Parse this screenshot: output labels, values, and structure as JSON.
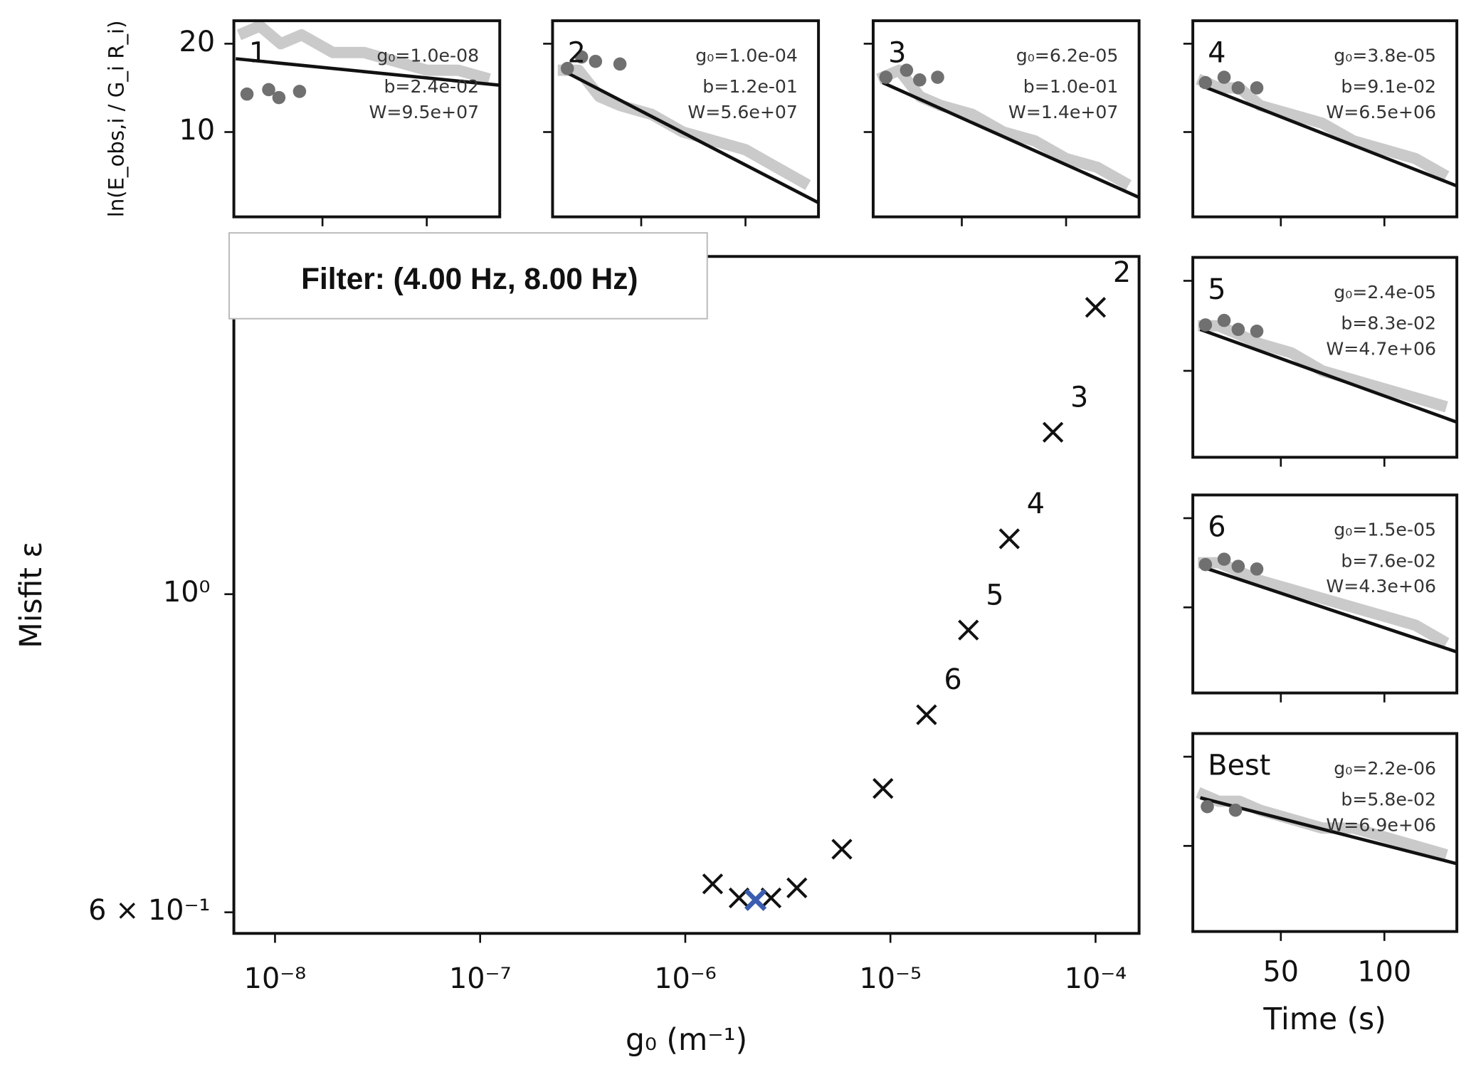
{
  "chart_data": [
    {
      "type": "scatter",
      "xlabel": "g₀ (m⁻¹)",
      "ylabel": "Misfit ε",
      "annotation": "Filter: (4.00 Hz, 8.00 Hz)",
      "xlog": true,
      "ylog": true,
      "xlim": [
        6.3e-09,
        0.000163
      ],
      "ylim": [
        0.58,
        1.72
      ],
      "xticks": [
        {
          "value": 1e-08,
          "label": "10⁻⁸"
        },
        {
          "value": 1e-07,
          "label": "10⁻⁷"
        },
        {
          "value": 1e-06,
          "label": "10⁻⁶"
        },
        {
          "value": 1e-05,
          "label": "10⁻⁵"
        },
        {
          "value": 0.0001,
          "label": "10⁻⁴"
        }
      ],
      "yticks": [
        {
          "value": 1,
          "label": "10⁰"
        },
        {
          "value": 0.6,
          "label": "6 × 10⁻¹"
        }
      ],
      "series": [
        {
          "color": "#111111",
          "x": [
            0.0001,
            6.2e-05,
            3.8e-05,
            2.4e-05,
            1.5e-05,
            9.2e-06,
            5.8e-06,
            3.5e-06,
            1.36e-06,
            1.83e-06,
            2.62e-06
          ],
          "values": [
            1.585,
            1.297,
            1.093,
            0.944,
            0.824,
            0.732,
            0.664,
            0.624,
            0.628,
            0.614,
            0.614
          ],
          "point_labels": [
            "2",
            "3",
            "4",
            "5",
            "6",
            null,
            null,
            null,
            null,
            null,
            null
          ]
        },
        {
          "color": "#3a5db0",
          "x": [
            2.2e-06
          ],
          "values": [
            0.612
          ]
        }
      ]
    },
    {
      "type": "line",
      "title": "1",
      "annotations": [
        "g₀=1.0e-08",
        "b=2.4e-02",
        "W=9.5e+07"
      ],
      "ylabel": "ln(E_obs,i / G_i R_i)",
      "xlim": [
        7.5,
        135
      ],
      "ylim": [
        0.4,
        22.6
      ],
      "xticks": [
        50,
        100
      ],
      "yticks": [
        10,
        20
      ],
      "ytick_labels": true,
      "xtick_labels": false,
      "x": [
        10,
        20,
        30,
        40,
        55,
        70,
        85,
        100,
        115,
        130
      ],
      "series": [
        {
          "color": "#c4c4c4",
          "values": [
            21,
            22,
            20,
            21,
            19,
            19,
            18,
            17,
            17,
            16
          ]
        }
      ],
      "points": {
        "color": "#707070",
        "x": [
          13.8,
          24.2,
          29.1,
          39
        ],
        "values": [
          14.3,
          14.8,
          13.9,
          14.6
        ]
      },
      "fit": {
        "color": "#111111",
        "x": [
          8.4,
          135
        ],
        "values": [
          18.3,
          15.3
        ]
      }
    },
    {
      "type": "line",
      "title": "2",
      "annotations": [
        "g₀=1.0e-04",
        "b=1.2e-01",
        "W=5.6e+07"
      ],
      "xlim": [
        7.5,
        135
      ],
      "ylim": [
        0.4,
        22.6
      ],
      "xticks": [
        50,
        100
      ],
      "yticks": [
        10,
        20
      ],
      "ytick_labels": false,
      "xtick_labels": false,
      "x": [
        10,
        20,
        30,
        40,
        55,
        70,
        85,
        100,
        115,
        130
      ],
      "series": [
        {
          "color": "#c4c4c4",
          "values": [
            17,
            17,
            14,
            13,
            12,
            10,
            9,
            8,
            6,
            4
          ]
        }
      ],
      "points": {
        "color": "#707070",
        "x": [
          14.6,
          21.4,
          28.1,
          39.8
        ],
        "values": [
          17.2,
          18.5,
          18,
          17.7
        ]
      },
      "fit": {
        "color": "#111111",
        "x": [
          12.9,
          135
        ],
        "values": [
          16.9,
          2.0
        ]
      }
    },
    {
      "type": "line",
      "title": "3",
      "annotations": [
        "g₀=6.2e-05",
        "b=1.0e-01",
        "W=1.4e+07"
      ],
      "xlim": [
        7.5,
        135
      ],
      "ylim": [
        0.4,
        22.6
      ],
      "xticks": [
        50,
        100
      ],
      "yticks": [
        10,
        20
      ],
      "ytick_labels": false,
      "xtick_labels": false,
      "x": [
        10,
        20,
        30,
        40,
        55,
        70,
        85,
        100,
        115,
        130
      ],
      "series": [
        {
          "color": "#c4c4c4",
          "values": [
            16,
            17,
            14,
            13,
            12,
            10,
            9,
            7,
            6,
            4
          ]
        }
      ],
      "points": {
        "color": "#707070",
        "x": [
          13.6,
          23.5,
          29.8,
          38.4
        ],
        "values": [
          16.2,
          17,
          15.9,
          16.2
        ]
      },
      "fit": {
        "color": "#111111",
        "x": [
          12,
          135
        ],
        "values": [
          15.6,
          2.6
        ]
      }
    },
    {
      "type": "line",
      "title": "4",
      "annotations": [
        "g₀=3.8e-05",
        "b=9.1e-02",
        "W=6.5e+06"
      ],
      "xlim": [
        7.5,
        135
      ],
      "ylim": [
        0.4,
        22.6
      ],
      "xticks": [
        50,
        100
      ],
      "yticks": [
        10,
        20
      ],
      "ytick_labels": false,
      "xtick_labels": false,
      "x": [
        10,
        20,
        30,
        40,
        55,
        70,
        85,
        100,
        115,
        130
      ],
      "series": [
        {
          "color": "#c4c4c4",
          "values": [
            16,
            15,
            15,
            13,
            12,
            11,
            9,
            8,
            7,
            5
          ]
        }
      ],
      "points": {
        "color": "#707070",
        "x": [
          13.6,
          22.6,
          29.4,
          38.4
        ],
        "values": [
          15.6,
          16.2,
          15,
          15
        ]
      },
      "fit": {
        "color": "#111111",
        "x": [
          11.1,
          135
        ],
        "values": [
          15.3,
          3.9
        ]
      }
    },
    {
      "type": "line",
      "title": "5",
      "annotations": [
        "g₀=2.4e-05",
        "b=8.3e-02",
        "W=4.7e+06"
      ],
      "xlim": [
        7.5,
        135
      ],
      "ylim": [
        0.4,
        22.6
      ],
      "xticks": [
        50,
        100
      ],
      "yticks": [
        10,
        20
      ],
      "ytick_labels": false,
      "xtick_labels": false,
      "x": [
        10,
        20,
        30,
        40,
        55,
        70,
        85,
        100,
        115,
        130
      ],
      "series": [
        {
          "color": "#c4c4c4",
          "values": [
            15,
            15,
            14,
            13,
            12,
            10,
            9,
            8,
            7,
            6
          ]
        }
      ],
      "points": {
        "color": "#707070",
        "x": [
          13.6,
          22.6,
          29.4,
          38.4
        ],
        "values": [
          15.1,
          15.6,
          14.6,
          14.4
        ]
      },
      "fit": {
        "color": "#111111",
        "x": [
          11.1,
          135
        ],
        "values": [
          14.6,
          4.3
        ]
      }
    },
    {
      "type": "line",
      "title": "6",
      "annotations": [
        "g₀=1.5e-05",
        "b=7.6e-02",
        "W=4.3e+06"
      ],
      "xlim": [
        7.5,
        135
      ],
      "ylim": [
        0.4,
        22.6
      ],
      "xticks": [
        50,
        100
      ],
      "yticks": [
        10,
        20
      ],
      "ytick_labels": false,
      "xtick_labels": false,
      "x": [
        10,
        20,
        30,
        40,
        55,
        70,
        85,
        100,
        115,
        130
      ],
      "series": [
        {
          "color": "#c4c4c4",
          "values": [
            15,
            15,
            14,
            13,
            12,
            11,
            10,
            9,
            8,
            6
          ]
        }
      ],
      "points": {
        "color": "#707070",
        "x": [
          13.6,
          22.6,
          29.4,
          38.4
        ],
        "values": [
          14.8,
          15.4,
          14.6,
          14.3
        ]
      },
      "fit": {
        "color": "#111111",
        "x": [
          11.1,
          135
        ],
        "values": [
          14.6,
          5.0
        ]
      }
    },
    {
      "type": "line",
      "title": "Best",
      "annotations": [
        "g₀=2.2e-06",
        "b=5.8e-02",
        "W=6.9e+06"
      ],
      "xlabel": "Time (s)",
      "xlim": [
        7.5,
        135
      ],
      "ylim": [
        0.4,
        22.6
      ],
      "xticks": [
        50,
        100
      ],
      "yticks": [
        10,
        20
      ],
      "ytick_labels": false,
      "xtick_labels": true,
      "x": [
        10,
        20,
        30,
        40,
        55,
        70,
        85,
        100,
        115,
        130
      ],
      "series": [
        {
          "color": "#c4c4c4",
          "values": [
            16,
            15,
            15,
            14,
            13,
            12,
            12,
            11,
            10,
            9
          ]
        }
      ],
      "points": {
        "color": "#707070",
        "x": [
          14.5,
          28.1
        ],
        "values": [
          14.4,
          14.0
        ]
      },
      "fit": {
        "color": "#111111",
        "x": [
          11.1,
          135
        ],
        "values": [
          15.4,
          8.0
        ]
      }
    }
  ]
}
